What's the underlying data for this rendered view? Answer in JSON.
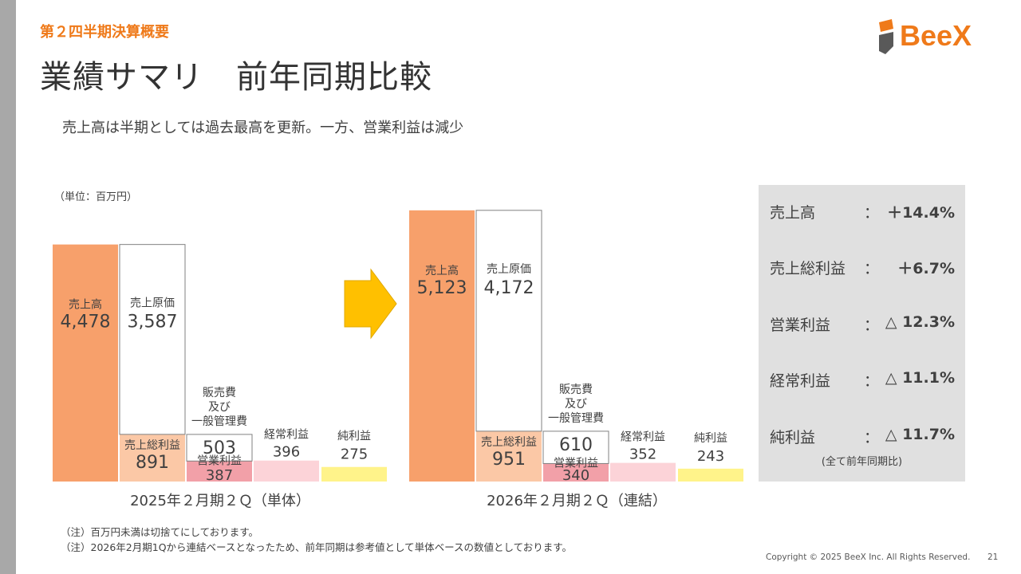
{
  "header": {
    "section": "第２四半期決算概要",
    "title": "業績サマリ　前年同期比較",
    "subtitle": "売上高は半期としては過去最高を更新。一方、営業利益は減少",
    "unit": "（単位：百万円）"
  },
  "logo": {
    "text": "BeeX"
  },
  "chart_data": {
    "type": "bar",
    "title": "業績サマリ　前年同期比較",
    "unit": "百万円",
    "colors": {
      "sales": "#f7a06b",
      "cogs": "#ffffff",
      "gross": "#fbc8a6",
      "sga": "#ffffff",
      "operating": "#f2a0a8",
      "ordinary": "#fcd3d8",
      "net": "#fff38a",
      "arrow": "#ffc000"
    },
    "groups": [
      {
        "label": "2025年２月期２Ｑ（単体）",
        "sales": {
          "label": "売上高",
          "value": 4478,
          "display": "4,478"
        },
        "cogs": {
          "label": "売上原価",
          "value": 3587,
          "display": "3,587"
        },
        "gross": {
          "label": "売上総利益",
          "value": 891,
          "display": "891"
        },
        "sga": {
          "label_lines": [
            "販売費",
            "及び",
            "一般管理費"
          ],
          "value": 503,
          "display": "503"
        },
        "operating": {
          "label": "営業利益",
          "value": 387,
          "display": "387"
        },
        "ordinary": {
          "label": "経常利益",
          "value": 396,
          "display": "396"
        },
        "net": {
          "label": "純利益",
          "value": 275,
          "display": "275"
        }
      },
      {
        "label": "2026年２月期２Ｑ（連結）",
        "sales": {
          "label": "売上高",
          "value": 5123,
          "display": "5,123"
        },
        "cogs": {
          "label": "売上原価",
          "value": 4172,
          "display": "4,172"
        },
        "gross": {
          "label": "売上総利益",
          "value": 951,
          "display": "951"
        },
        "sga": {
          "label_lines": [
            "販売費",
            "及び",
            "一般管理費"
          ],
          "value": 610,
          "display": "610"
        },
        "operating": {
          "label": "営業利益",
          "value": 340,
          "display": "340"
        },
        "ordinary": {
          "label": "経常利益",
          "value": 352,
          "display": "352"
        },
        "net": {
          "label": "純利益",
          "value": 243,
          "display": "243"
        }
      }
    ]
  },
  "summary": {
    "rows": [
      {
        "label": "売上高",
        "colon": "：",
        "value": "＋14.4%"
      },
      {
        "label": "売上総利益",
        "colon": "：",
        "value": "＋6.7%"
      },
      {
        "label": "営業利益",
        "colon": "：",
        "value": "△ 12.3%"
      },
      {
        "label": "経常利益",
        "colon": "：",
        "value": "△ 11.1%"
      },
      {
        "label": "純利益",
        "colon": "：",
        "value": "△ 11.7%"
      }
    ],
    "note": "(全て前年同期比)"
  },
  "notes": [
    "（注）百万円未満は切捨てにしております。",
    "（注）2026年2月期1Qから連結ベースとなったため、前年同期は参考値として単体ベースの数値としております。"
  ],
  "footer": {
    "copyright": "Copyright © 2025 BeeX Inc. All Rights Reserved.",
    "page": "21"
  }
}
